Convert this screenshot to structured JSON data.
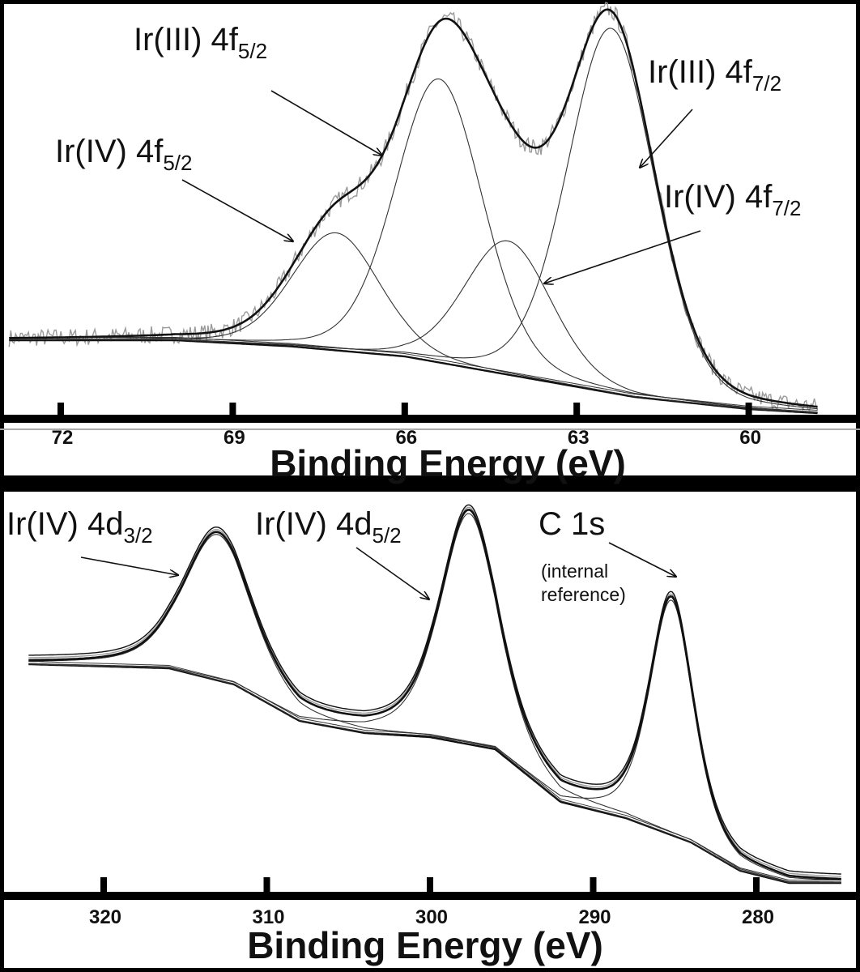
{
  "chart_data": [
    {
      "type": "line",
      "title": "",
      "xlabel": "Binding Energy (eV)",
      "ylabel": "",
      "xlim": [
        72.9,
        58.8
      ],
      "x_reversed": true,
      "ylim": [
        0,
        100
      ],
      "xticks": [
        72,
        69,
        66,
        63,
        60
      ],
      "tick_labels": [
        "72",
        "69",
        "66",
        "63",
        "60"
      ],
      "grid": false,
      "intensity_units": "arbitrary",
      "background": [
        [
          72.9,
          19
        ],
        [
          70,
          19
        ],
        [
          68,
          17.5
        ],
        [
          66,
          15
        ],
        [
          64,
          10
        ],
        [
          62,
          5
        ],
        [
          60,
          2
        ],
        [
          58.8,
          1
        ]
      ],
      "components": [
        {
          "name": "Ir(IV) 4f5/2",
          "center": 67.2,
          "amplitude": 29,
          "fwhm": 1.8
        },
        {
          "name": "Ir(III) 4f5/2",
          "center": 65.4,
          "amplitude": 70,
          "fwhm": 1.8
        },
        {
          "name": "Ir(IV) 4f7/2",
          "center": 64.2,
          "amplitude": 33,
          "fwhm": 1.8
        },
        {
          "name": "Ir(III) 4f7/2",
          "center": 62.4,
          "amplitude": 90,
          "fwhm": 1.8
        }
      ],
      "lorentz_fraction": 0.2,
      "annotations": [
        {
          "text": "Ir(III) 4f",
          "sub": "5/2"
        },
        {
          "text": "Ir(IV) 4f",
          "sub": "5/2"
        },
        {
          "text": "Ir(III) 4f",
          "sub": "7/2"
        },
        {
          "text": "Ir(IV) 4f",
          "sub": "7/2"
        }
      ],
      "colors": {
        "envelope": "#111111",
        "components": "#333333",
        "raw": "#9a9a9a"
      }
    },
    {
      "type": "line",
      "title": "",
      "xlabel": "Binding Energy (eV)",
      "ylabel": "",
      "xlim": [
        324.6,
        274.8
      ],
      "x_reversed": true,
      "ylim": [
        0,
        100
      ],
      "xticks": [
        320,
        310,
        300,
        290,
        280
      ],
      "tick_labels": [
        "320",
        "310",
        "300",
        "290",
        "280"
      ],
      "grid": false,
      "intensity_units": "arbitrary",
      "background": [
        [
          324.6,
          57
        ],
        [
          316,
          56
        ],
        [
          312,
          52
        ],
        [
          308,
          43
        ],
        [
          304,
          40
        ],
        [
          300,
          39
        ],
        [
          296,
          36
        ],
        [
          292,
          23
        ],
        [
          288,
          19
        ],
        [
          284,
          13
        ],
        [
          281,
          6
        ],
        [
          278,
          3
        ],
        [
          274.8,
          3
        ]
      ],
      "components": [
        {
          "name": "Ir(IV) 4d3/2",
          "center": 313,
          "amplitude": 36,
          "fwhm": 5.0
        },
        {
          "name": "Ir(IV) 4d5/2",
          "center": 297.6,
          "amplitude": 57,
          "fwhm": 4.2
        },
        {
          "name": "C 1s",
          "center": 285.2,
          "amplitude": 58,
          "fwhm": 3.2
        }
      ],
      "lorentz_fraction": 0.5,
      "annotations": [
        {
          "text": "Ir(IV) 4d",
          "sub": "3/2"
        },
        {
          "text": "Ir(IV) 4d",
          "sub": "5/2"
        },
        {
          "text": "C 1s",
          "sub": ""
        },
        {
          "text": "(internal",
          "sub": ""
        },
        {
          "text": "reference)",
          "sub": ""
        }
      ],
      "colors": {
        "envelope": "#111111",
        "components": "#333333",
        "raw": "#9a9a9a"
      }
    }
  ]
}
